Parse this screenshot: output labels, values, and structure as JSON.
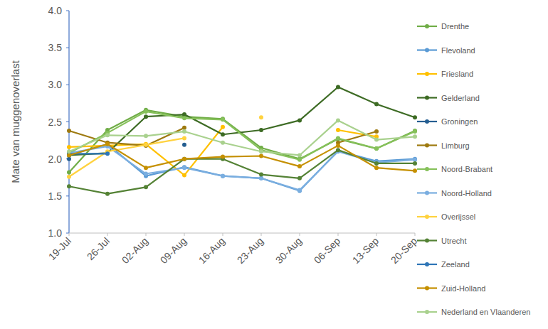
{
  "chart_data": {
    "type": "line",
    "y_label": "Mate van muggenoverlast",
    "categories": [
      "19-Jul",
      "26-Jul",
      "02-Aug",
      "09-Aug",
      "16-Aug",
      "23-Aug",
      "30-Aug",
      "06-Sep",
      "13-Sep",
      "20-Sep"
    ],
    "ylim": [
      1.0,
      4.0
    ],
    "yticks": [
      {
        "value": 1.0,
        "label": "1.0"
      },
      {
        "value": 1.5,
        "label": "1.5"
      },
      {
        "value": 2.0,
        "label": "2.0"
      },
      {
        "value": 2.5,
        "label": "2.5"
      },
      {
        "value": 3.0,
        "label": "3.0"
      },
      {
        "value": 3.5,
        "label": "3.5"
      },
      {
        "value": 4.0,
        "label": "4.0"
      }
    ],
    "grid": false,
    "legend": "right",
    "marker": "circle",
    "series": [
      {
        "name": "Drenthe",
        "color": "#70ad47",
        "values": [
          1.82,
          2.39,
          2.66,
          2.57,
          2.54,
          2.15,
          2.0,
          2.27,
          2.14,
          2.38
        ]
      },
      {
        "name": "Flevoland",
        "color": "#5b9bd5",
        "values": [
          2.05,
          2.2,
          1.77,
          1.89,
          1.77,
          1.74,
          1.57,
          2.11,
          1.97,
          2.0
        ]
      },
      {
        "name": "Friesland",
        "color": "#ffc000",
        "values": [
          2.16,
          2.18,
          2.2,
          1.78,
          2.43,
          null,
          null,
          2.39,
          2.3,
          null
        ]
      },
      {
        "name": "Gelderland",
        "color": "#3d6b24",
        "values": [
          2.05,
          2.08,
          2.57,
          2.6,
          2.33,
          2.39,
          2.52,
          2.97,
          2.74,
          2.56
        ]
      },
      {
        "name": "Groningen",
        "color": "#255e91",
        "values": [
          2.0,
          null,
          null,
          2.19,
          null,
          null,
          null,
          null,
          null,
          null
        ]
      },
      {
        "name": "Limburg",
        "color": "#9e7a10",
        "values": [
          2.38,
          2.22,
          2.18,
          2.42,
          null,
          null,
          null,
          2.22,
          2.37,
          null
        ]
      },
      {
        "name": "Noord-Brabant",
        "color": "#86c15a",
        "values": [
          2.08,
          2.35,
          2.64,
          2.55,
          2.53,
          2.12,
          1.99,
          2.28,
          2.14,
          2.37
        ]
      },
      {
        "name": "Noord-Holland",
        "color": "#7aaee0",
        "values": [
          2.08,
          2.17,
          1.8,
          1.88,
          1.77,
          1.74,
          1.58,
          2.1,
          1.95,
          1.99
        ]
      },
      {
        "name": "Overijssel",
        "color": "#ffd23f",
        "values": [
          1.76,
          2.1,
          2.19,
          2.28,
          null,
          2.56,
          null,
          null,
          null,
          null
        ]
      },
      {
        "name": "Utrecht",
        "color": "#548235",
        "values": [
          1.63,
          1.53,
          1.62,
          2.0,
          2.0,
          1.79,
          1.74,
          2.12,
          1.94,
          1.94
        ]
      },
      {
        "name": "Zeeland",
        "color": "#2e75b6",
        "values": [
          2.07,
          2.07,
          null,
          null,
          null,
          null,
          null,
          null,
          null,
          null
        ]
      },
      {
        "name": "Zuid-Holland",
        "color": "#c59000",
        "values": [
          2.05,
          2.2,
          1.88,
          2.0,
          2.03,
          2.04,
          1.9,
          2.18,
          1.88,
          1.84
        ]
      },
      {
        "name": "Nederland en Vlaanderen",
        "color": "#a9d18e",
        "values": [
          2.1,
          2.32,
          2.31,
          2.37,
          2.22,
          2.1,
          2.05,
          2.52,
          2.26,
          2.3
        ]
      }
    ]
  }
}
